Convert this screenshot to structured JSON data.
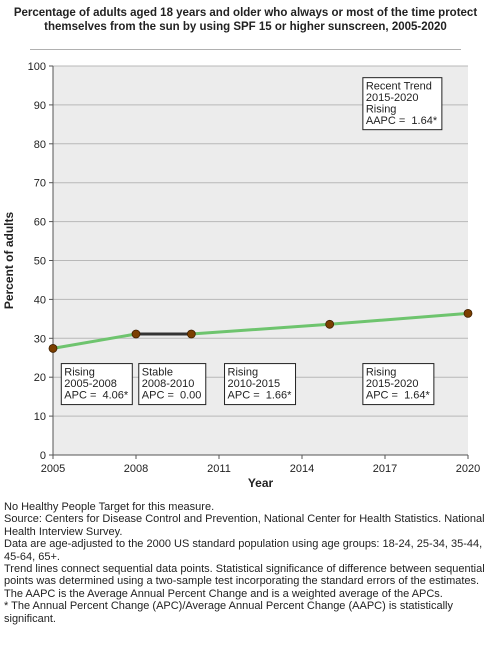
{
  "chart_data": {
    "type": "line",
    "title": "Percentage of adults aged 18 years and older who always or most of the time protect themselves from the sun by using SPF 15 or higher sunscreen, 2005-2020",
    "xlabel": "Year",
    "ylabel": "Percent of adults",
    "xlim": [
      2005,
      2020
    ],
    "ylim": [
      0,
      100
    ],
    "xticks": [
      2005,
      2008,
      2011,
      2014,
      2017,
      2020
    ],
    "yticks": [
      0,
      10,
      20,
      30,
      40,
      50,
      60,
      70,
      80,
      90,
      100
    ],
    "grid": true,
    "points": [
      {
        "x": 2005,
        "y": 27.4
      },
      {
        "x": 2008,
        "y": 31.1
      },
      {
        "x": 2010,
        "y": 31.1
      },
      {
        "x": 2015,
        "y": 33.6
      },
      {
        "x": 2020,
        "y": 36.4
      }
    ],
    "segments": [
      {
        "from": 2005,
        "to": 2008,
        "trend": "Rising",
        "color": "#6ec46e"
      },
      {
        "from": 2008,
        "to": 2010,
        "trend": "Stable",
        "color": "#333333"
      },
      {
        "from": 2010,
        "to": 2015,
        "trend": "Rising",
        "color": "#6ec46e"
      },
      {
        "from": 2015,
        "to": 2020,
        "trend": "Rising",
        "color": "#6ec46e"
      }
    ],
    "annotations": [
      {
        "lines": [
          "Rising",
          "2005-2008",
          "APC =  4.06*"
        ],
        "anchor_x": 2005.3,
        "anchor_y": 23.5
      },
      {
        "lines": [
          "Stable",
          "2008-2010",
          "APC =  0.00"
        ],
        "anchor_x": 2008.1,
        "anchor_y": 23.5
      },
      {
        "lines": [
          "Rising",
          "2010-2015",
          "APC =  1.66*"
        ],
        "anchor_x": 2011.2,
        "anchor_y": 23.5
      },
      {
        "lines": [
          "Rising",
          "2015-2020",
          "APC =  1.64*"
        ],
        "anchor_x": 2016.2,
        "anchor_y": 23.5
      },
      {
        "lines": [
          "Recent Trend",
          "2015-2020",
          "Rising",
          "AAPC =  1.64*"
        ],
        "anchor_x": 2016.2,
        "anchor_y": 97
      }
    ],
    "marker_color": "#7b3f00",
    "plot_bg": "#ececec"
  },
  "notes": [
    "No Healthy People Target for this measure.",
    "Source: Centers for Disease Control and Prevention, National Center for Health Statistics. National Health Interview Survey.",
    "Data are age-adjusted to the 2000 US standard population using age groups: 18-24, 25-34, 35-44, 45-64, 65+.",
    "Trend lines connect sequential data points. Statistical significance of difference between sequential points was determined using a two-sample test incorporating the standard errors of the estimates.",
    "The AAPC is the Average Annual Percent Change and is a weighted average of the APCs.",
    "* The Annual Percent Change (APC)/Average Annual Percent Change (AAPC) is statistically significant."
  ]
}
